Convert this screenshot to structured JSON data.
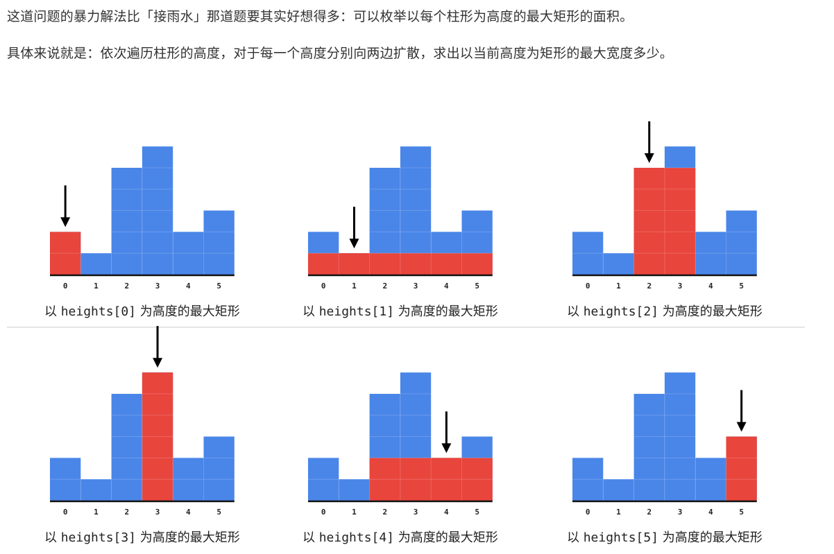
{
  "paragraphs": [
    "这道问题的暴力解法比「接雨水」那道题要其实好想得多：可以枚举以每个柱形为高度的最大矩形的面积。",
    "具体来说就是：依次遍历柱形的高度，对于每一个高度分别向两边扩散，求出以当前高度为矩形的最大宽度多少。"
  ],
  "colors": {
    "bar": "#4a86e8",
    "highlight": "#e8453c",
    "axis": "#111111",
    "divider": "#dddddd"
  },
  "chart_data": [
    {
      "type": "bar",
      "categories": [
        "0",
        "1",
        "2",
        "3",
        "4",
        "5"
      ],
      "values": [
        2,
        1,
        5,
        6,
        2,
        3
      ],
      "arrow_index": 0,
      "rect": {
        "from": 0,
        "to": 0,
        "height": 2
      },
      "caption_prefix": "以 ",
      "caption_code": "heights[0]",
      "caption_suffix": " 为高度的最大矩形"
    },
    {
      "type": "bar",
      "categories": [
        "0",
        "1",
        "2",
        "3",
        "4",
        "5"
      ],
      "values": [
        2,
        1,
        5,
        6,
        2,
        3
      ],
      "arrow_index": 1,
      "rect": {
        "from": 0,
        "to": 5,
        "height": 1
      },
      "caption_prefix": "以 ",
      "caption_code": "heights[1]",
      "caption_suffix": " 为高度的最大矩形"
    },
    {
      "type": "bar",
      "categories": [
        "0",
        "1",
        "2",
        "3",
        "4",
        "5"
      ],
      "values": [
        2,
        1,
        5,
        6,
        2,
        3
      ],
      "arrow_index": 2,
      "rect": {
        "from": 2,
        "to": 3,
        "height": 5
      },
      "caption_prefix": "以 ",
      "caption_code": "heights[2]",
      "caption_suffix": " 为高度的最大矩形"
    },
    {
      "type": "bar",
      "categories": [
        "0",
        "1",
        "2",
        "3",
        "4",
        "5"
      ],
      "values": [
        2,
        1,
        5,
        6,
        2,
        3
      ],
      "arrow_index": 3,
      "rect": {
        "from": 3,
        "to": 3,
        "height": 6
      },
      "caption_prefix": "以 ",
      "caption_code": "heights[3]",
      "caption_suffix": " 为高度的最大矩形"
    },
    {
      "type": "bar",
      "categories": [
        "0",
        "1",
        "2",
        "3",
        "4",
        "5"
      ],
      "values": [
        2,
        1,
        5,
        6,
        2,
        3
      ],
      "arrow_index": 4,
      "rect": {
        "from": 2,
        "to": 5,
        "height": 2
      },
      "caption_prefix": "以 ",
      "caption_code": "heights[4]",
      "caption_suffix": " 为高度的最大矩形"
    },
    {
      "type": "bar",
      "categories": [
        "0",
        "1",
        "2",
        "3",
        "4",
        "5"
      ],
      "values": [
        2,
        1,
        5,
        6,
        2,
        3
      ],
      "arrow_index": 5,
      "rect": {
        "from": 5,
        "to": 5,
        "height": 3
      },
      "caption_prefix": "以 ",
      "caption_code": "heights[5]",
      "caption_suffix": " 为高度的最大矩形"
    }
  ]
}
